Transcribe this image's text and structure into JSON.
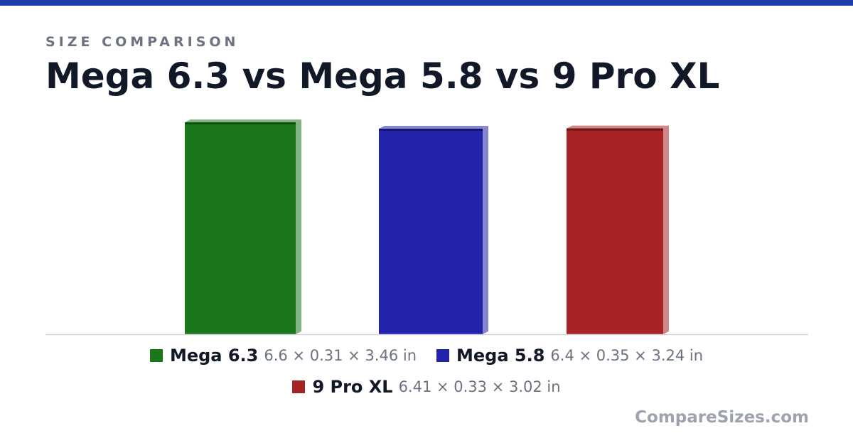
{
  "header": {
    "eyebrow": "SIZE COMPARISON",
    "title": "Mega 6.3 vs Mega 5.8 vs 9 Pro XL"
  },
  "colors": {
    "top_bar": "#1a3faa"
  },
  "chart_data": {
    "type": "bar",
    "categories": [
      "Mega 6.3",
      "Mega 5.8",
      "9 Pro XL"
    ],
    "values": [
      6.6,
      6.4,
      6.41
    ],
    "unit": "in",
    "colors": [
      "#1b771b",
      "#2222aa",
      "#a82325"
    ],
    "ylim": [
      0,
      6.6
    ],
    "grid": false,
    "legend_position": "bottom",
    "legend": [
      {
        "name": "Mega 6.3",
        "dims": "6.6 × 0.31 × 3.46 in"
      },
      {
        "name": "Mega 5.8",
        "dims": "6.4 × 0.35 × 3.24 in"
      },
      {
        "name": "9 Pro XL",
        "dims": "6.41 × 0.33 × 3.02 in"
      }
    ]
  },
  "footer": {
    "watermark": "CompareSizes.com"
  }
}
